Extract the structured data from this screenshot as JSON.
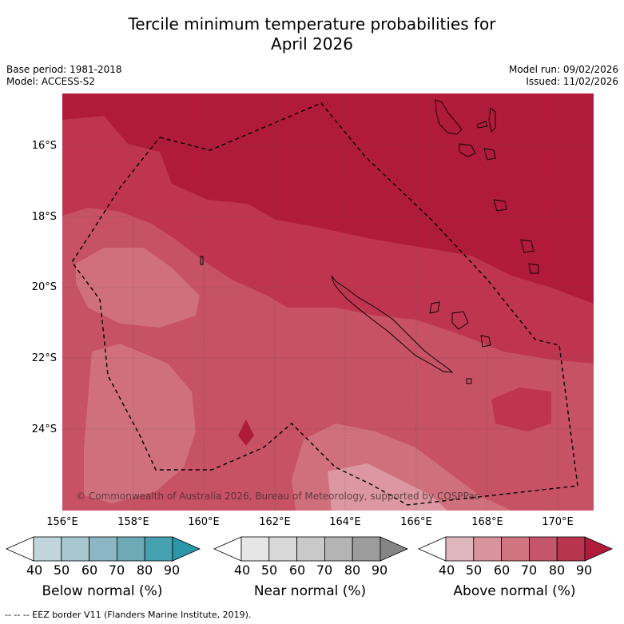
{
  "header": {
    "title_line1": "Tercile minimum temperature probabilities for",
    "title_line2": "April 2026",
    "base_period": "Base period: 1981-2018",
    "model": "Model: ACCESS-S2",
    "model_run": "Model run: 09/02/2026",
    "issued": "Issued: 11/02/2026"
  },
  "map": {
    "lat_labels": [
      "16°S",
      "18°S",
      "20°S",
      "22°S",
      "24°S"
    ],
    "lon_labels": [
      "156°E",
      "158°E",
      "160°E",
      "162°E",
      "164°E",
      "166°E",
      "168°E",
      "170°E"
    ],
    "copyright": "© Commonwealth of Australia 2026, Bureau of Meteorology, supported by COSPPac",
    "colors": {
      "above_90": "#b01b3b",
      "above_80": "#bf3550",
      "above_70": "#c65264",
      "above_60": "#d0707d",
      "above_50": "#dc97a2"
    }
  },
  "colorbars": [
    {
      "title": "Below normal (%)",
      "ticks": [
        "40",
        "50",
        "60",
        "70",
        "80",
        "90"
      ],
      "colors": [
        "#ffffff",
        "#c0d6dc",
        "#a7c8ce",
        "#8cb7c2",
        "#6ea9b6",
        "#45a0b0",
        "#2c97ab"
      ]
    },
    {
      "title": "Near normal (%)",
      "ticks": [
        "40",
        "50",
        "60",
        "70",
        "80",
        "90"
      ],
      "colors": [
        "#ffffff",
        "#e6e6e6",
        "#d8d8d8",
        "#c9c9c9",
        "#b4b4b4",
        "#9c9c9c",
        "#858585"
      ]
    },
    {
      "title": "Above normal (%)",
      "ticks": [
        "40",
        "50",
        "60",
        "70",
        "80",
        "90"
      ],
      "colors": [
        "#ffffff",
        "#e0b6bd",
        "#d9939c",
        "#cf7480",
        "#c4556a",
        "#b83550",
        "#b01b3b"
      ]
    }
  ],
  "legend": {
    "eez_text": "--  --  -- EEZ border V11 (Flanders Marine Institute, 2019)."
  }
}
